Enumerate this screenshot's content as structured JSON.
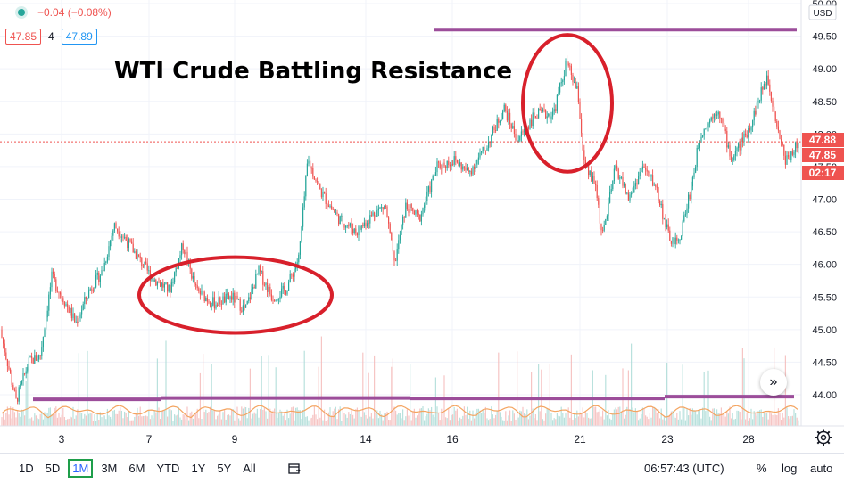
{
  "header": {
    "change_text": "−0.04 (−0.08%)",
    "sell_price": "47.85",
    "spread": "4",
    "buy_price": "47.89"
  },
  "annotation": {
    "title": "WTI Crude Battling Resistance"
  },
  "axis": {
    "currency": "USD",
    "y_ticks": [
      "50.00",
      "49.50",
      "49.00",
      "48.50",
      "48.00",
      "47.50",
      "47.00",
      "46.50",
      "46.00",
      "45.50",
      "45.00",
      "44.50",
      "44.00"
    ],
    "x_ticks": [
      "3",
      "7",
      "9",
      "14",
      "16",
      "21",
      "23",
      "28"
    ]
  },
  "price_labels": {
    "last": "47.88",
    "bid": "47.85",
    "countdown": "02:17"
  },
  "bottom_bar": {
    "timeframes": [
      "1D",
      "5D",
      "1M",
      "3M",
      "6M",
      "YTD",
      "1Y",
      "5Y",
      "All"
    ],
    "active": "1M",
    "clock": "06:57:43 (UTC)",
    "percent": "%",
    "log": "log",
    "auto": "auto"
  },
  "colors": {
    "up": "#26a69a",
    "down": "#ef5350",
    "annotation_red": "#d8202b",
    "annotation_purple": "#9c4d9a"
  },
  "chart_data": {
    "type": "candlestick",
    "ylim": [
      43.6,
      50.05
    ],
    "resistance_level": 49.6,
    "support_level": 43.93,
    "anchors": [
      {
        "x": 0,
        "y": 45.0
      },
      {
        "x": 10,
        "y": 44.4
      },
      {
        "x": 18,
        "y": 43.9
      },
      {
        "x": 32,
        "y": 44.5
      },
      {
        "x": 45,
        "y": 44.6
      },
      {
        "x": 58,
        "y": 45.8
      },
      {
        "x": 70,
        "y": 45.5
      },
      {
        "x": 85,
        "y": 45.1
      },
      {
        "x": 100,
        "y": 45.6
      },
      {
        "x": 115,
        "y": 45.9
      },
      {
        "x": 128,
        "y": 46.6
      },
      {
        "x": 140,
        "y": 46.4
      },
      {
        "x": 155,
        "y": 46.1
      },
      {
        "x": 170,
        "y": 45.8
      },
      {
        "x": 190,
        "y": 45.6
      },
      {
        "x": 205,
        "y": 46.3
      },
      {
        "x": 220,
        "y": 45.6
      },
      {
        "x": 240,
        "y": 45.4
      },
      {
        "x": 260,
        "y": 45.5
      },
      {
        "x": 275,
        "y": 45.3
      },
      {
        "x": 290,
        "y": 45.9
      },
      {
        "x": 305,
        "y": 45.5
      },
      {
        "x": 320,
        "y": 45.6
      },
      {
        "x": 335,
        "y": 46.1
      },
      {
        "x": 345,
        "y": 47.6
      },
      {
        "x": 360,
        "y": 47.1
      },
      {
        "x": 380,
        "y": 46.7
      },
      {
        "x": 400,
        "y": 46.5
      },
      {
        "x": 420,
        "y": 46.8
      },
      {
        "x": 432,
        "y": 46.9
      },
      {
        "x": 442,
        "y": 46.0
      },
      {
        "x": 455,
        "y": 46.9
      },
      {
        "x": 470,
        "y": 46.7
      },
      {
        "x": 490,
        "y": 47.5
      },
      {
        "x": 510,
        "y": 47.6
      },
      {
        "x": 525,
        "y": 47.4
      },
      {
        "x": 545,
        "y": 47.8
      },
      {
        "x": 565,
        "y": 48.4
      },
      {
        "x": 580,
        "y": 47.9
      },
      {
        "x": 600,
        "y": 48.3
      },
      {
        "x": 620,
        "y": 48.3
      },
      {
        "x": 635,
        "y": 49.1
      },
      {
        "x": 648,
        "y": 48.6
      },
      {
        "x": 655,
        "y": 47.5
      },
      {
        "x": 668,
        "y": 47.2
      },
      {
        "x": 675,
        "y": 46.4
      },
      {
        "x": 690,
        "y": 47.5
      },
      {
        "x": 705,
        "y": 47.0
      },
      {
        "x": 720,
        "y": 47.5
      },
      {
        "x": 735,
        "y": 47.2
      },
      {
        "x": 750,
        "y": 46.4
      },
      {
        "x": 760,
        "y": 46.3
      },
      {
        "x": 775,
        "y": 47.2
      },
      {
        "x": 785,
        "y": 48.0
      },
      {
        "x": 805,
        "y": 48.4
      },
      {
        "x": 820,
        "y": 47.6
      },
      {
        "x": 840,
        "y": 48.1
      },
      {
        "x": 860,
        "y": 48.9
      },
      {
        "x": 870,
        "y": 48.2
      },
      {
        "x": 880,
        "y": 47.6
      },
      {
        "x": 895,
        "y": 47.85
      }
    ],
    "ellipses": [
      {
        "cx": 264,
        "cy": 45.53,
        "rx": 108,
        "ry": 0.58
      },
      {
        "cx": 636,
        "cy": 48.47,
        "rx": 50,
        "ry": 1.05
      }
    ]
  }
}
